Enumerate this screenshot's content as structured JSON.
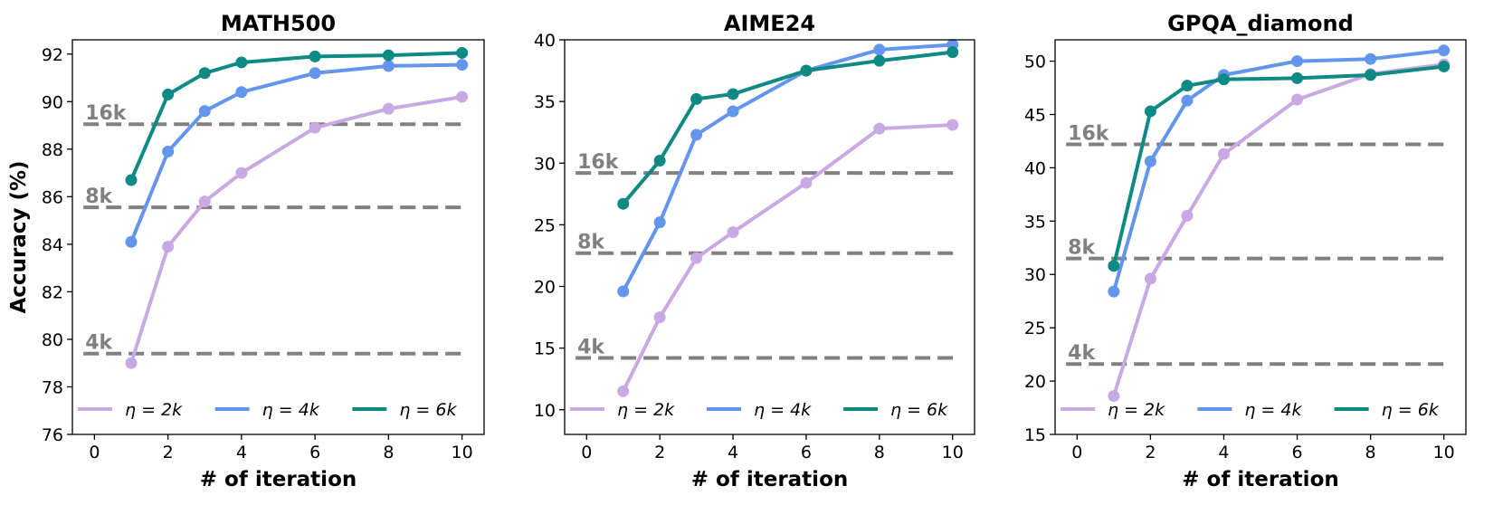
{
  "colors": {
    "eta2k": "#c9a9e3",
    "eta4k": "#6495ed",
    "eta6k": "#0e8a84",
    "ref": "#808080"
  },
  "chart_data": [
    {
      "type": "line",
      "title": "MATH500",
      "xlabel": "# of iteration",
      "ylabel": "Accuracy (%)",
      "xlim": [
        -0.6,
        10.6
      ],
      "ylim": [
        76,
        92.6
      ],
      "xticks": [
        0,
        2,
        4,
        6,
        8,
        10
      ],
      "yticks": [
        76,
        78,
        80,
        82,
        84,
        86,
        88,
        90,
        92
      ],
      "x": [
        1,
        2,
        3,
        4,
        6,
        8,
        10
      ],
      "series": [
        {
          "name": "η = 2k",
          "color": "#c9a9e3",
          "values": [
            79.0,
            83.9,
            85.8,
            87.0,
            88.9,
            89.7,
            90.2
          ]
        },
        {
          "name": "η = 4k",
          "color": "#6495ed",
          "values": [
            84.1,
            87.9,
            89.6,
            90.4,
            91.2,
            91.5,
            91.55
          ]
        },
        {
          "name": "η = 6k",
          "color": "#0e8a84",
          "values": [
            86.7,
            90.3,
            91.2,
            91.65,
            91.9,
            91.95,
            92.05
          ]
        }
      ],
      "reference_lines": [
        {
          "label": "16k",
          "value": 89.05
        },
        {
          "label": "8k",
          "value": 85.55
        },
        {
          "label": "4k",
          "value": 79.4
        }
      ],
      "legend": {
        "placement": "bottom",
        "entries": [
          "η = 2k",
          "η = 4k",
          "η = 6k"
        ]
      }
    },
    {
      "type": "line",
      "title": "AIME24",
      "xlabel": "# of iteration",
      "ylabel": "",
      "xlim": [
        -0.6,
        10.6
      ],
      "ylim": [
        8,
        40
      ],
      "xticks": [
        0,
        2,
        4,
        6,
        8,
        10
      ],
      "yticks": [
        10,
        15,
        20,
        25,
        30,
        35,
        40
      ],
      "x": [
        1,
        2,
        3,
        4,
        6,
        8,
        10
      ],
      "series": [
        {
          "name": "η = 2k",
          "color": "#c9a9e3",
          "values": [
            11.5,
            17.5,
            22.3,
            24.4,
            28.4,
            32.8,
            33.1
          ]
        },
        {
          "name": "η = 4k",
          "color": "#6495ed",
          "values": [
            19.6,
            25.2,
            32.3,
            34.2,
            37.5,
            39.2,
            39.6
          ]
        },
        {
          "name": "η = 6k",
          "color": "#0e8a84",
          "values": [
            26.7,
            30.2,
            35.2,
            35.6,
            37.5,
            38.3,
            39.0
          ]
        }
      ],
      "reference_lines": [
        {
          "label": "16k",
          "value": 29.2
        },
        {
          "label": "8k",
          "value": 22.7
        },
        {
          "label": "4k",
          "value": 14.2
        }
      ],
      "legend": {
        "placement": "bottom",
        "entries": [
          "η = 2k",
          "η = 4k",
          "η = 6k"
        ]
      }
    },
    {
      "type": "line",
      "title": "GPQA_diamond",
      "xlabel": "# of iteration",
      "ylabel": "",
      "xlim": [
        -0.6,
        10.6
      ],
      "ylim": [
        15,
        52
      ],
      "xticks": [
        0,
        2,
        4,
        6,
        8,
        10
      ],
      "yticks": [
        15,
        20,
        25,
        30,
        35,
        40,
        45,
        50
      ],
      "x": [
        1,
        2,
        3,
        4,
        6,
        8,
        10
      ],
      "series": [
        {
          "name": "η = 2k",
          "color": "#c9a9e3",
          "values": [
            18.6,
            29.6,
            35.5,
            41.3,
            46.4,
            48.8,
            49.7
          ]
        },
        {
          "name": "η = 4k",
          "color": "#6495ed",
          "values": [
            28.4,
            40.6,
            46.3,
            48.7,
            50.0,
            50.2,
            51.0
          ]
        },
        {
          "name": "η = 6k",
          "color": "#0e8a84",
          "values": [
            30.8,
            45.3,
            47.7,
            48.3,
            48.4,
            48.7,
            49.5
          ]
        }
      ],
      "reference_lines": [
        {
          "label": "16k",
          "value": 42.2
        },
        {
          "label": "8k",
          "value": 31.5
        },
        {
          "label": "4k",
          "value": 21.6
        }
      ],
      "legend": {
        "placement": "bottom",
        "entries": [
          "η = 2k",
          "η = 4k",
          "η = 6k"
        ]
      }
    }
  ]
}
